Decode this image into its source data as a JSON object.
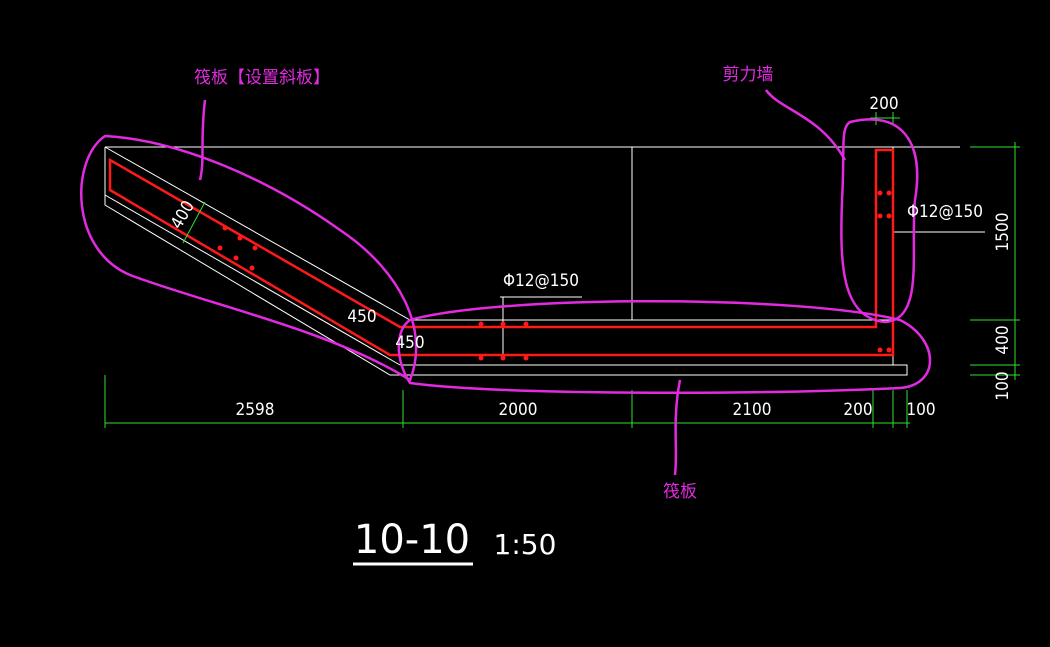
{
  "annotations": {
    "slab_label": "筏板【设置斜板】",
    "wall_label": "剪力墙",
    "raft_label": "筏板"
  },
  "section": {
    "title": "10-10",
    "scale": "1:50"
  },
  "dimensions": {
    "bottom": [
      2598,
      2000,
      2100,
      200,
      100
    ],
    "right": [
      1500,
      400,
      100
    ],
    "top": 200,
    "slab_thickness": 400,
    "angle_labels": [
      450,
      450
    ]
  },
  "rebar": [
    "Φ12@150",
    "Φ12@150"
  ]
}
